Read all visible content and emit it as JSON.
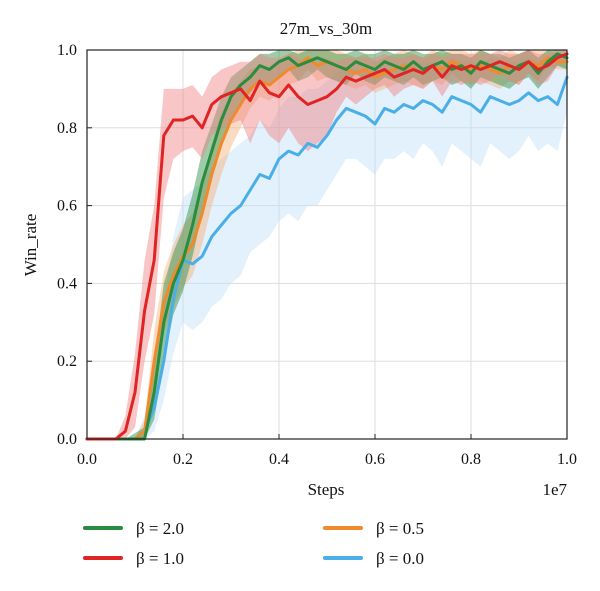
{
  "chart_data": {
    "type": "line",
    "title": "27m_vs_30m",
    "xlabel": "Steps",
    "ylabel": "Win_rate",
    "x_scale_note": "1e7",
    "xlim": [
      0.0,
      1.0
    ],
    "ylim": [
      0.0,
      1.0
    ],
    "x_ticks": [
      "0.0",
      "0.2",
      "0.4",
      "0.6",
      "0.8",
      "1.0"
    ],
    "y_ticks": [
      "0.0",
      "0.2",
      "0.4",
      "0.6",
      "0.8",
      "1.0"
    ],
    "grid": true,
    "legend_placement": "below",
    "series": [
      {
        "name": "β = 2.0",
        "color": "#2a8c3e",
        "band_color": "#2a8c3e",
        "x": [
          0.0,
          0.08,
          0.12,
          0.14,
          0.16,
          0.18,
          0.2,
          0.22,
          0.24,
          0.26,
          0.28,
          0.3,
          0.32,
          0.34,
          0.36,
          0.38,
          0.4,
          0.42,
          0.44,
          0.46,
          0.48,
          0.5,
          0.52,
          0.54,
          0.56,
          0.58,
          0.6,
          0.62,
          0.64,
          0.66,
          0.68,
          0.7,
          0.72,
          0.74,
          0.76,
          0.78,
          0.8,
          0.82,
          0.84,
          0.86,
          0.88,
          0.9,
          0.92,
          0.94,
          0.96,
          0.98,
          1.0
        ],
        "y": [
          0.0,
          0.0,
          0.0,
          0.12,
          0.3,
          0.4,
          0.46,
          0.55,
          0.66,
          0.74,
          0.82,
          0.88,
          0.91,
          0.93,
          0.96,
          0.95,
          0.97,
          0.98,
          0.96,
          0.97,
          0.98,
          0.97,
          0.96,
          0.95,
          0.97,
          0.96,
          0.95,
          0.97,
          0.96,
          0.95,
          0.97,
          0.95,
          0.96,
          0.97,
          0.95,
          0.96,
          0.94,
          0.97,
          0.96,
          0.95,
          0.94,
          0.96,
          0.97,
          0.94,
          0.97,
          0.99,
          0.98
        ],
        "band_low": [
          0.0,
          0.0,
          0.0,
          0.05,
          0.2,
          0.32,
          0.38,
          0.47,
          0.58,
          0.67,
          0.75,
          0.82,
          0.86,
          0.89,
          0.92,
          0.91,
          0.93,
          0.95,
          0.92,
          0.93,
          0.95,
          0.93,
          0.92,
          0.91,
          0.94,
          0.92,
          0.91,
          0.93,
          0.92,
          0.91,
          0.93,
          0.91,
          0.92,
          0.93,
          0.91,
          0.92,
          0.9,
          0.93,
          0.92,
          0.91,
          0.9,
          0.92,
          0.93,
          0.9,
          0.93,
          0.96,
          0.95
        ],
        "band_high": [
          0.0,
          0.0,
          0.03,
          0.2,
          0.4,
          0.48,
          0.54,
          0.63,
          0.74,
          0.81,
          0.88,
          0.93,
          0.95,
          0.97,
          0.99,
          0.99,
          1.0,
          1.0,
          0.99,
          1.0,
          1.0,
          1.0,
          0.99,
          0.99,
          1.0,
          0.99,
          0.99,
          1.0,
          0.99,
          0.99,
          1.0,
          0.99,
          0.99,
          1.0,
          0.99,
          0.99,
          0.98,
          1.0,
          0.99,
          0.99,
          0.98,
          0.99,
          1.0,
          0.98,
          1.0,
          1.0,
          1.0
        ]
      },
      {
        "name": "β = 1.0",
        "color": "#e02424",
        "band_color": "#f08080",
        "x": [
          0.0,
          0.06,
          0.08,
          0.1,
          0.12,
          0.14,
          0.16,
          0.18,
          0.2,
          0.22,
          0.24,
          0.26,
          0.28,
          0.3,
          0.32,
          0.34,
          0.36,
          0.38,
          0.4,
          0.42,
          0.44,
          0.46,
          0.48,
          0.5,
          0.52,
          0.54,
          0.56,
          0.58,
          0.6,
          0.62,
          0.64,
          0.66,
          0.68,
          0.7,
          0.72,
          0.74,
          0.76,
          0.78,
          0.8,
          0.82,
          0.84,
          0.86,
          0.88,
          0.9,
          0.92,
          0.94,
          0.96,
          0.98,
          1.0
        ],
        "y": [
          0.0,
          0.0,
          0.02,
          0.12,
          0.33,
          0.46,
          0.78,
          0.82,
          0.82,
          0.83,
          0.8,
          0.86,
          0.88,
          0.89,
          0.9,
          0.87,
          0.92,
          0.89,
          0.88,
          0.91,
          0.88,
          0.86,
          0.87,
          0.88,
          0.9,
          0.93,
          0.92,
          0.93,
          0.94,
          0.95,
          0.93,
          0.94,
          0.95,
          0.94,
          0.96,
          0.93,
          0.96,
          0.95,
          0.96,
          0.95,
          0.96,
          0.97,
          0.96,
          0.95,
          0.97,
          0.95,
          0.96,
          0.98,
          0.99
        ],
        "band_low": [
          0.0,
          0.0,
          0.0,
          0.03,
          0.2,
          0.32,
          0.62,
          0.72,
          0.74,
          0.75,
          0.72,
          0.78,
          0.8,
          0.81,
          0.82,
          0.76,
          0.82,
          0.78,
          0.76,
          0.8,
          0.76,
          0.74,
          0.76,
          0.78,
          0.84,
          0.88,
          0.86,
          0.88,
          0.9,
          0.91,
          0.88,
          0.9,
          0.91,
          0.9,
          0.92,
          0.88,
          0.92,
          0.91,
          0.92,
          0.91,
          0.92,
          0.94,
          0.92,
          0.91,
          0.94,
          0.91,
          0.92,
          0.96,
          0.97
        ],
        "band_high": [
          0.0,
          0.0,
          0.06,
          0.22,
          0.46,
          0.6,
          0.9,
          0.9,
          0.9,
          0.91,
          0.88,
          0.93,
          0.95,
          0.96,
          0.97,
          0.97,
          0.99,
          0.98,
          0.98,
          0.99,
          0.98,
          0.97,
          0.97,
          0.98,
          0.97,
          0.98,
          0.98,
          0.98,
          0.98,
          0.99,
          0.98,
          0.98,
          0.99,
          0.98,
          0.99,
          0.98,
          0.99,
          0.99,
          0.99,
          0.99,
          0.99,
          1.0,
          0.99,
          0.99,
          1.0,
          0.99,
          0.99,
          1.0,
          1.0
        ]
      },
      {
        "name": "β = 0.5",
        "color": "#f08a2c",
        "band_color": "#f4b27a",
        "x": [
          0.0,
          0.1,
          0.12,
          0.14,
          0.16,
          0.18,
          0.2,
          0.22,
          0.24,
          0.26,
          0.28,
          0.3,
          0.32,
          0.34,
          0.36,
          0.38,
          0.4,
          0.42,
          0.44,
          0.46,
          0.48,
          0.5,
          0.52,
          0.54,
          0.56,
          0.58,
          0.6,
          0.62,
          0.64,
          0.66,
          0.68,
          0.7,
          0.72,
          0.74,
          0.76,
          0.78,
          0.8,
          0.82,
          0.84,
          0.86,
          0.88,
          0.9,
          0.92,
          0.94,
          0.96,
          0.98,
          1.0
        ],
        "y": [
          0.0,
          0.0,
          0.02,
          0.2,
          0.35,
          0.42,
          0.47,
          0.5,
          0.58,
          0.68,
          0.76,
          0.82,
          0.86,
          0.9,
          0.92,
          0.91,
          0.93,
          0.95,
          0.96,
          0.98,
          0.96,
          0.97,
          0.96,
          0.95,
          0.94,
          0.95,
          0.93,
          0.94,
          0.95,
          0.96,
          0.95,
          0.94,
          0.96,
          0.95,
          0.97,
          0.96,
          0.95,
          0.96,
          0.95,
          0.94,
          0.96,
          0.95,
          0.97,
          0.96,
          0.98,
          0.97,
          0.97
        ],
        "band_low": [
          0.0,
          0.0,
          0.0,
          0.12,
          0.27,
          0.34,
          0.39,
          0.42,
          0.5,
          0.6,
          0.68,
          0.75,
          0.8,
          0.85,
          0.88,
          0.87,
          0.89,
          0.91,
          0.92,
          0.95,
          0.92,
          0.93,
          0.92,
          0.91,
          0.9,
          0.91,
          0.89,
          0.9,
          0.91,
          0.92,
          0.91,
          0.9,
          0.92,
          0.91,
          0.94,
          0.92,
          0.91,
          0.92,
          0.91,
          0.9,
          0.92,
          0.91,
          0.94,
          0.92,
          0.96,
          0.95,
          0.95
        ],
        "band_high": [
          0.0,
          0.0,
          0.05,
          0.28,
          0.43,
          0.5,
          0.55,
          0.58,
          0.66,
          0.76,
          0.84,
          0.89,
          0.92,
          0.95,
          0.96,
          0.95,
          0.97,
          0.99,
          1.0,
          1.0,
          1.0,
          1.0,
          1.0,
          0.99,
          0.98,
          0.99,
          0.97,
          0.98,
          0.99,
          1.0,
          0.99,
          0.98,
          1.0,
          0.99,
          1.0,
          1.0,
          0.99,
          1.0,
          0.99,
          0.98,
          1.0,
          0.99,
          1.0,
          1.0,
          1.0,
          0.99,
          0.99
        ]
      },
      {
        "name": "β = 0.0",
        "color": "#4aaee8",
        "band_color": "#bfe1f7",
        "x": [
          0.0,
          0.1,
          0.12,
          0.14,
          0.16,
          0.18,
          0.2,
          0.22,
          0.24,
          0.26,
          0.28,
          0.3,
          0.32,
          0.34,
          0.36,
          0.38,
          0.4,
          0.42,
          0.44,
          0.46,
          0.48,
          0.5,
          0.52,
          0.54,
          0.56,
          0.58,
          0.6,
          0.62,
          0.64,
          0.66,
          0.68,
          0.7,
          0.72,
          0.74,
          0.76,
          0.78,
          0.8,
          0.82,
          0.84,
          0.86,
          0.88,
          0.9,
          0.92,
          0.94,
          0.96,
          0.98,
          1.0
        ],
        "y": [
          0.0,
          0.0,
          0.02,
          0.08,
          0.2,
          0.36,
          0.46,
          0.45,
          0.47,
          0.52,
          0.55,
          0.58,
          0.6,
          0.64,
          0.68,
          0.67,
          0.72,
          0.74,
          0.73,
          0.76,
          0.75,
          0.78,
          0.82,
          0.85,
          0.84,
          0.83,
          0.81,
          0.85,
          0.84,
          0.86,
          0.85,
          0.87,
          0.86,
          0.84,
          0.88,
          0.87,
          0.86,
          0.84,
          0.88,
          0.87,
          0.86,
          0.87,
          0.89,
          0.87,
          0.88,
          0.86,
          0.93
        ],
        "band_low": [
          0.0,
          0.0,
          0.0,
          0.02,
          0.1,
          0.22,
          0.3,
          0.28,
          0.3,
          0.34,
          0.36,
          0.4,
          0.42,
          0.48,
          0.5,
          0.52,
          0.56,
          0.58,
          0.56,
          0.6,
          0.6,
          0.64,
          0.68,
          0.72,
          0.72,
          0.7,
          0.68,
          0.72,
          0.72,
          0.74,
          0.72,
          0.76,
          0.74,
          0.7,
          0.76,
          0.74,
          0.72,
          0.7,
          0.76,
          0.74,
          0.72,
          0.74,
          0.78,
          0.74,
          0.76,
          0.74,
          0.84
        ],
        "band_high": [
          0.0,
          0.0,
          0.06,
          0.16,
          0.34,
          0.52,
          0.62,
          0.64,
          0.66,
          0.7,
          0.72,
          0.74,
          0.76,
          0.78,
          0.82,
          0.8,
          0.85,
          0.88,
          0.88,
          0.9,
          0.9,
          0.92,
          0.94,
          0.96,
          0.95,
          0.95,
          0.93,
          0.96,
          0.95,
          0.97,
          0.96,
          0.97,
          0.97,
          0.96,
          0.98,
          0.97,
          0.97,
          0.96,
          0.98,
          0.97,
          0.97,
          0.97,
          0.98,
          0.97,
          0.98,
          0.97,
          0.99
        ]
      }
    ]
  }
}
